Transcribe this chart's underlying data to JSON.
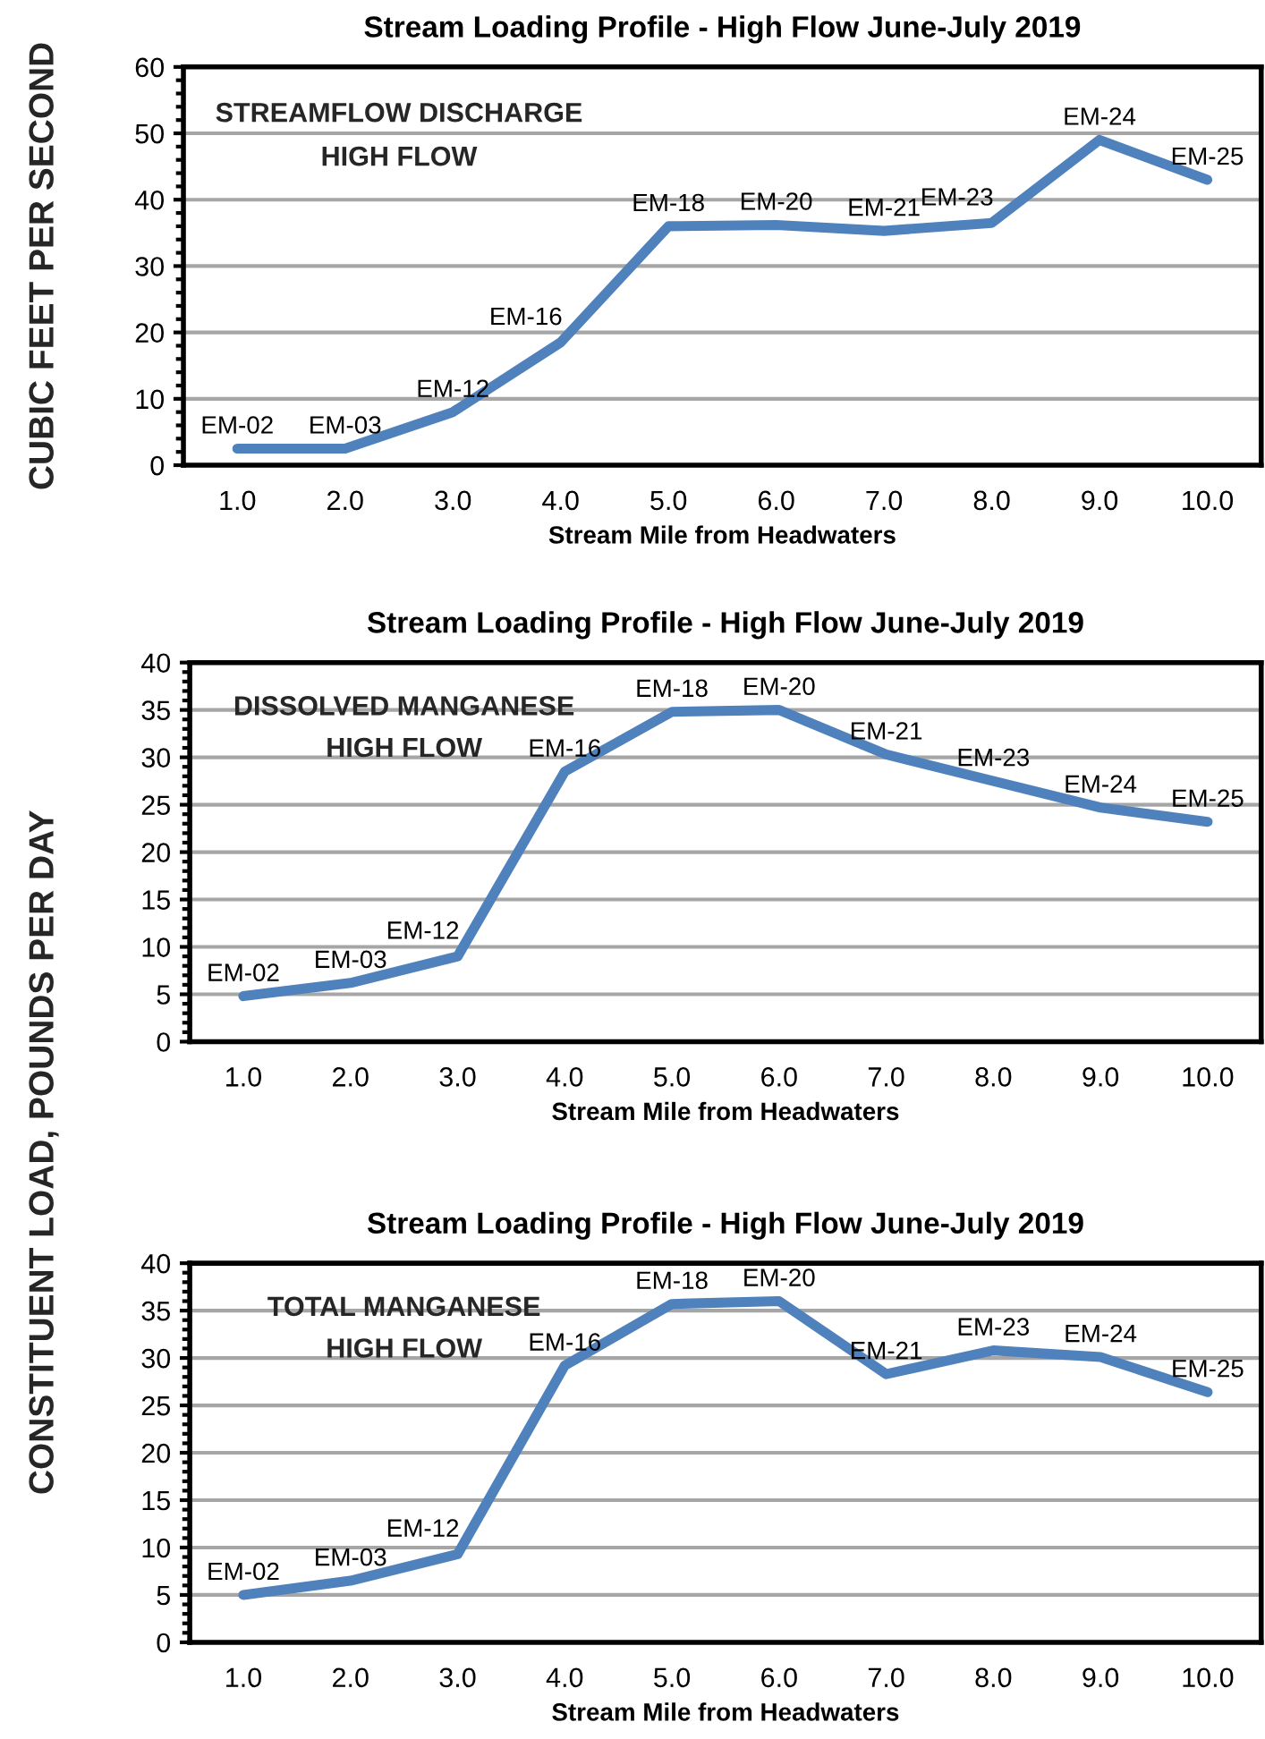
{
  "chart_data": [
    {
      "type": "line",
      "title": "Stream Loading Profile - High Flow June-July 2019",
      "xlabel": "Stream Mile from Headwaters",
      "ylabel": "CUBIC FEET PER SECOND",
      "categories": [
        "1.0",
        "2.0",
        "3.0",
        "4.0",
        "5.0",
        "6.0",
        "7.0",
        "8.0",
        "9.0",
        "10.0"
      ],
      "series": [
        {
          "color": "#4f81bd",
          "values": [
            2.5,
            2.5,
            8,
            18.5,
            36,
            36.2,
            35.3,
            36.5,
            49,
            43
          ]
        }
      ],
      "ylim": [
        0,
        60
      ],
      "yticks": [
        0,
        10,
        20,
        30,
        40,
        50,
        60
      ],
      "grid": "y",
      "marker": "none",
      "line_style": "solid",
      "annotations": [
        "STREAMFLOW DISCHARGE",
        "HIGH FLOW",
        {
          "text": "EM-02",
          "x": "1.0",
          "y": 2.5
        },
        {
          "text": "EM-03",
          "x": "2.0",
          "y": 2.5
        },
        {
          "text": "EM-12",
          "x": "3.0",
          "y": 8
        },
        {
          "text": "EM-16",
          "x": "4.0",
          "y": 18.5
        },
        {
          "text": "EM-18",
          "x": "5.0",
          "y": 36
        },
        {
          "text": "EM-20",
          "x": "6.0",
          "y": 36.2
        },
        {
          "text": "EM-21",
          "x": "7.0",
          "y": 35.3
        },
        {
          "text": "EM-23",
          "x": "8.0",
          "y": 36.5
        },
        {
          "text": "EM-24",
          "x": "9.0",
          "y": 49
        },
        {
          "text": "EM-25",
          "x": "10.0",
          "y": 43
        }
      ]
    },
    {
      "type": "line",
      "title": "Stream Loading Profile - High Flow June-July 2019",
      "xlabel": "Stream Mile from Headwaters",
      "ylabel": "CONSTITUENT LOAD, POUNDS PER DAY",
      "categories": [
        "1.0",
        "2.0",
        "3.0",
        "4.0",
        "5.0",
        "6.0",
        "7.0",
        "8.0",
        "9.0",
        "10.0"
      ],
      "series": [
        {
          "color": "#4f81bd",
          "values": [
            4.8,
            6.2,
            9,
            28.5,
            34.8,
            35,
            30.3,
            27.5,
            24.7,
            23.2
          ]
        }
      ],
      "ylim": [
        0,
        40
      ],
      "yticks": [
        0,
        5,
        10,
        15,
        20,
        25,
        30,
        35,
        40
      ],
      "grid": "y",
      "marker": "none",
      "line_style": "solid",
      "annotations": [
        "DISSOLVED MANGANESE",
        "HIGH FLOW",
        {
          "text": "EM-02",
          "x": "1.0",
          "y": 4.8
        },
        {
          "text": "EM-03",
          "x": "2.0",
          "y": 6.2
        },
        {
          "text": "EM-12",
          "x": "3.0",
          "y": 9
        },
        {
          "text": "EM-16",
          "x": "4.0",
          "y": 28.5
        },
        {
          "text": "EM-18",
          "x": "5.0",
          "y": 34.8
        },
        {
          "text": "EM-20",
          "x": "6.0",
          "y": 35
        },
        {
          "text": "EM-21",
          "x": "7.0",
          "y": 30.3
        },
        {
          "text": "EM-23",
          "x": "8.0",
          "y": 27.5
        },
        {
          "text": "EM-24",
          "x": "9.0",
          "y": 24.7
        },
        {
          "text": "EM-25",
          "x": "10.0",
          "y": 23.2
        }
      ]
    },
    {
      "type": "line",
      "title": "Stream Loading Profile - High Flow June-July 2019",
      "xlabel": "Stream Mile from Headwaters",
      "categories": [
        "1.0",
        "2.0",
        "3.0",
        "4.0",
        "5.0",
        "6.0",
        "7.0",
        "8.0",
        "9.0",
        "10.0"
      ],
      "series": [
        {
          "color": "#4f81bd",
          "values": [
            5,
            6.5,
            9.3,
            29.2,
            35.7,
            36,
            28.3,
            30.8,
            30.1,
            26.4
          ]
        }
      ],
      "ylim": [
        0,
        40
      ],
      "yticks": [
        0,
        5,
        10,
        15,
        20,
        25,
        30,
        35,
        40
      ],
      "grid": "y",
      "marker": "none",
      "line_style": "solid",
      "annotations": [
        "TOTAL MANGANESE",
        "HIGH FLOW",
        {
          "text": "EM-02",
          "x": "1.0",
          "y": 5
        },
        {
          "text": "EM-03",
          "x": "2.0",
          "y": 6.5
        },
        {
          "text": "EM-12",
          "x": "3.0",
          "y": 9.3
        },
        {
          "text": "EM-16",
          "x": "4.0",
          "y": 29.2
        },
        {
          "text": "EM-18",
          "x": "5.0",
          "y": 35.7
        },
        {
          "text": "EM-20",
          "x": "6.0",
          "y": 36
        },
        {
          "text": "EM-21",
          "x": "7.0",
          "y": 28.3
        },
        {
          "text": "EM-23",
          "x": "8.0",
          "y": 30.8
        },
        {
          "text": "EM-24",
          "x": "9.0",
          "y": 30.1
        },
        {
          "text": "EM-25",
          "x": "10.0",
          "y": 26.4
        }
      ]
    }
  ]
}
